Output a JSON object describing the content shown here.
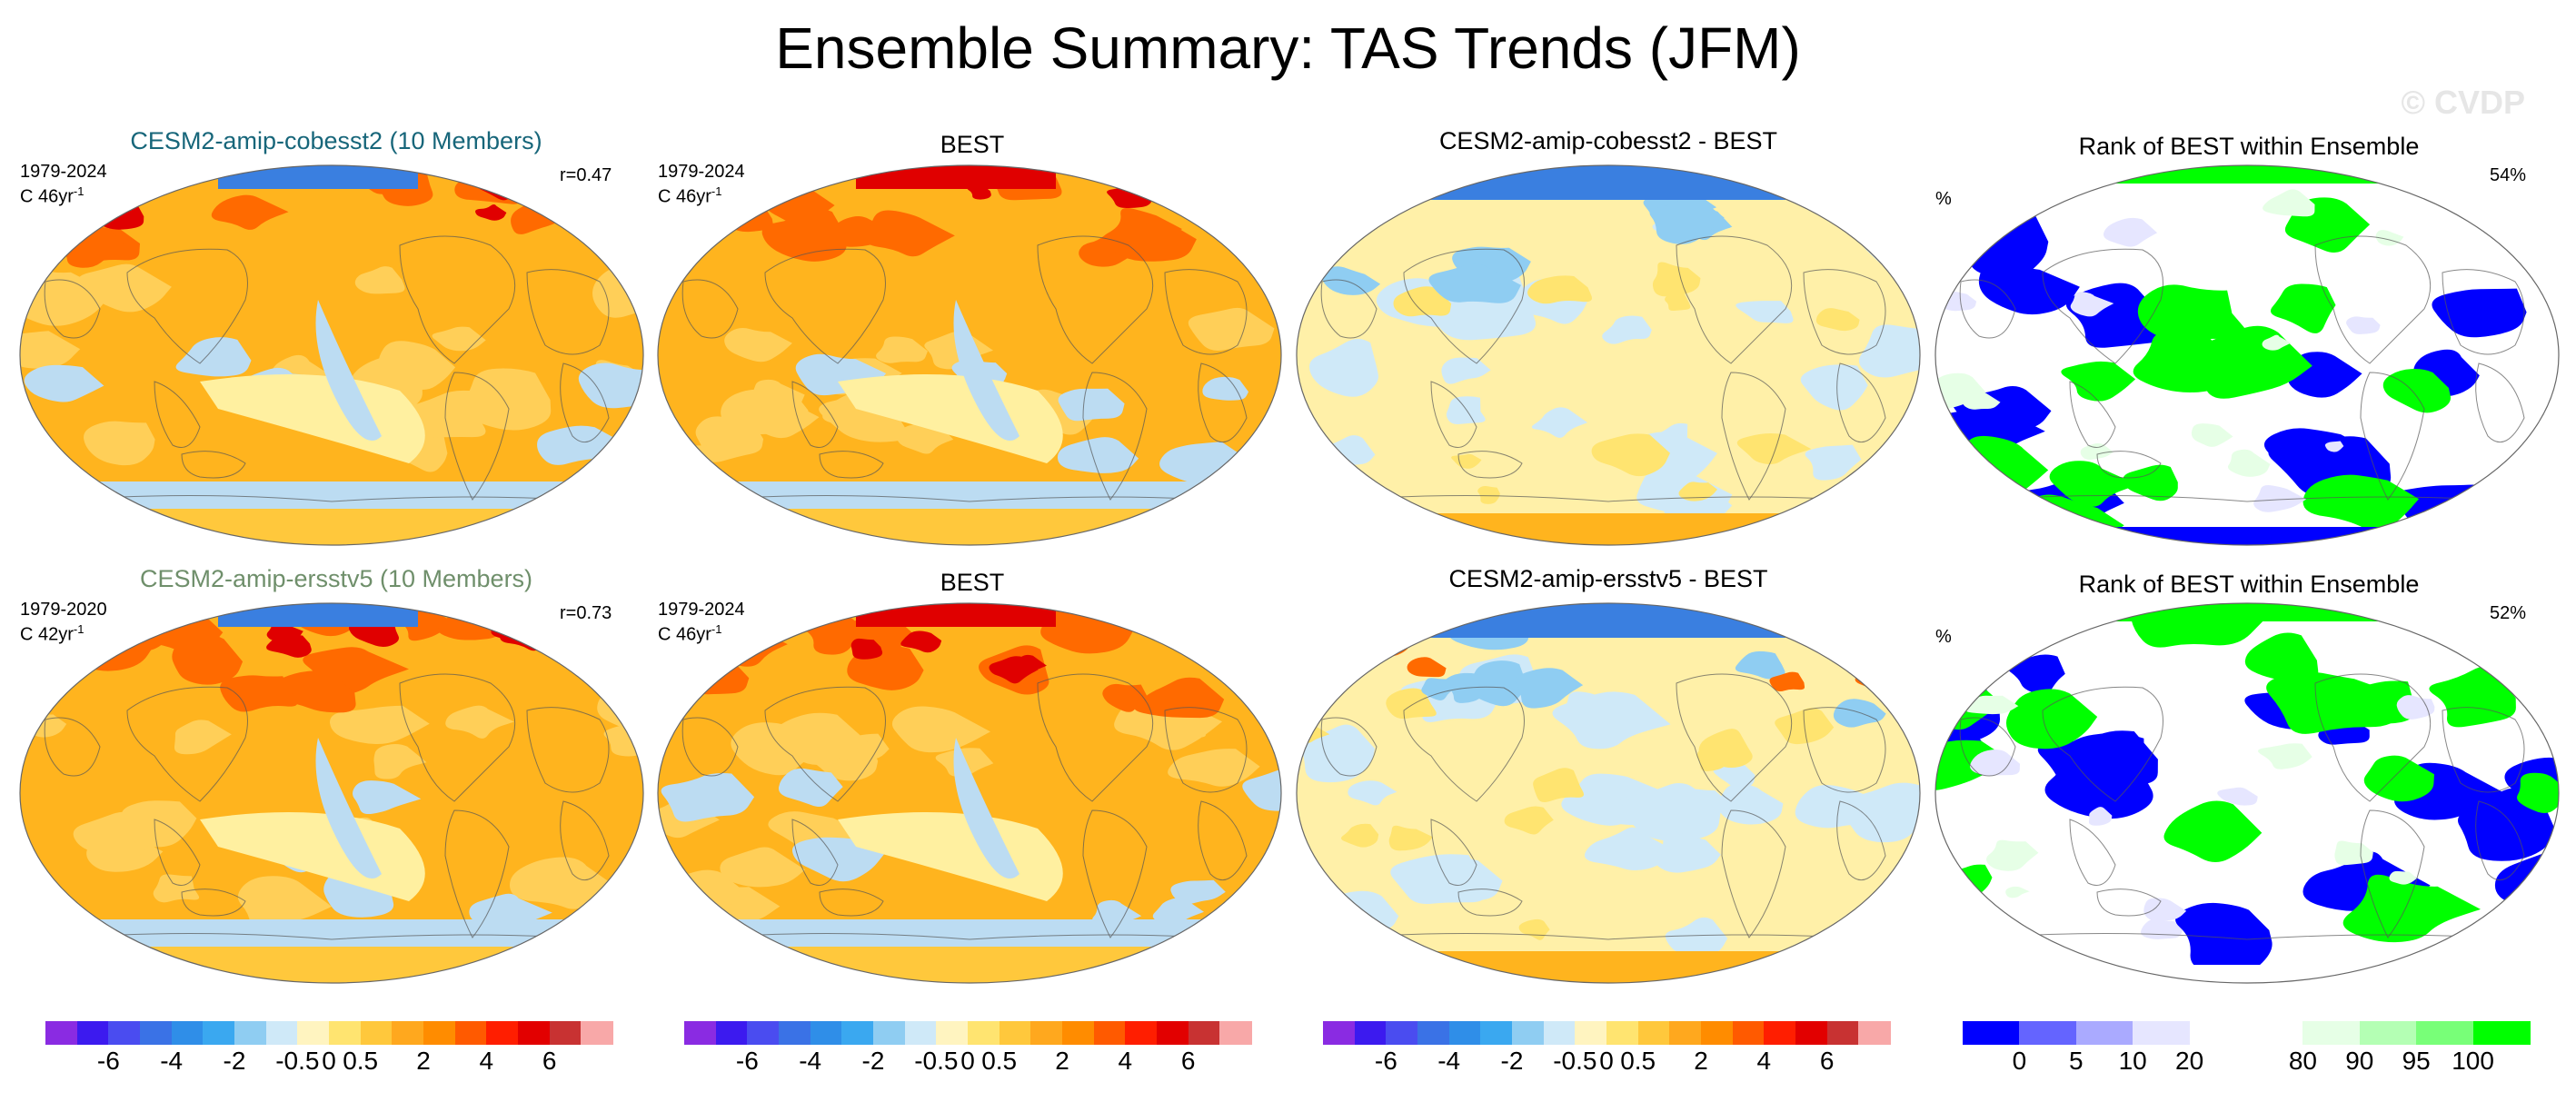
{
  "title": "Ensemble Summary: TAS Trends (JFM)",
  "watermark": "© CVDP",
  "rows": [
    {
      "model": {
        "title": "CESM2-amip-cobesst2 (10 Members)",
        "title_color": "#17667a",
        "period": "1979-2024",
        "trend": "C 46yr",
        "trend_exp": "-1",
        "corr": "r=0.47"
      },
      "obs": {
        "title": "BEST",
        "period": "",
        "trend": "",
        "trend_exp": ""
      },
      "diff": {
        "title": "CESM2-amip-cobesst2 - BEST"
      },
      "rank": {
        "title": "Rank of BEST within Ensemble",
        "unit": "%",
        "pct": "54%"
      }
    },
    {
      "model": {
        "title": "CESM2-amip-ersstv5 (10 Members)",
        "title_color": "#6f8f6b",
        "period": "1979-2020",
        "trend": "C 42yr",
        "trend_exp": "-1",
        "corr": "r=0.73"
      },
      "obs": {
        "title": "BEST",
        "period": "1979-2024",
        "trend": "C 46yr",
        "trend_exp": "-1"
      },
      "diff": {
        "title": "CESM2-amip-ersstv5 - BEST"
      },
      "rank": {
        "title": "Rank of BEST within Ensemble",
        "unit": "%",
        "pct": "52%"
      }
    }
  ],
  "obs_row1_labels": {
    "period": "1979-2024",
    "trend": "C 46yr",
    "trend_exp": "-1"
  },
  "colorbars": {
    "trend": {
      "colors": [
        "#8a2be2",
        "#3c1aef",
        "#4a4cf0",
        "#3a72e6",
        "#2f8ee8",
        "#3aa8f0",
        "#8fcdf2",
        "#cfe9f8",
        "#fff4c0",
        "#ffe470",
        "#ffc83c",
        "#ffa81e",
        "#ff8c00",
        "#ff5a00",
        "#ff1e00",
        "#e20000",
        "#c83232",
        "#f8a8a8"
      ],
      "labels": [
        "-6",
        "-4",
        "-2",
        "-0.5",
        "0",
        "0.5",
        "2",
        "4",
        "6"
      ],
      "label_boundaries": [
        2,
        4,
        6,
        8,
        9,
        10,
        12,
        14,
        16
      ]
    },
    "rank": {
      "colors": [
        "#0000ff",
        "#6464ff",
        "#aaaaff",
        "#e6e6ff",
        "#ffffff",
        "#ffffff",
        "#e6ffe6",
        "#b4ffb4",
        "#78ff78",
        "#00ff00"
      ],
      "labels": [
        "0",
        "5",
        "10",
        "20",
        "80",
        "90",
        "95",
        "100"
      ],
      "label_boundaries": [
        1,
        2,
        3,
        4,
        6,
        7,
        8,
        9
      ]
    }
  },
  "colors": {
    "trend_base": "#ffb41e",
    "cool": "#bcdcf2",
    "cold": "#3a7fe0",
    "warm": "#ff6a00",
    "hot": "#e00000",
    "diff_base": "#fff0a8",
    "rank_blue": "#0000ff",
    "rank_green": "#00ff00",
    "rank_white": "#ffffff"
  }
}
